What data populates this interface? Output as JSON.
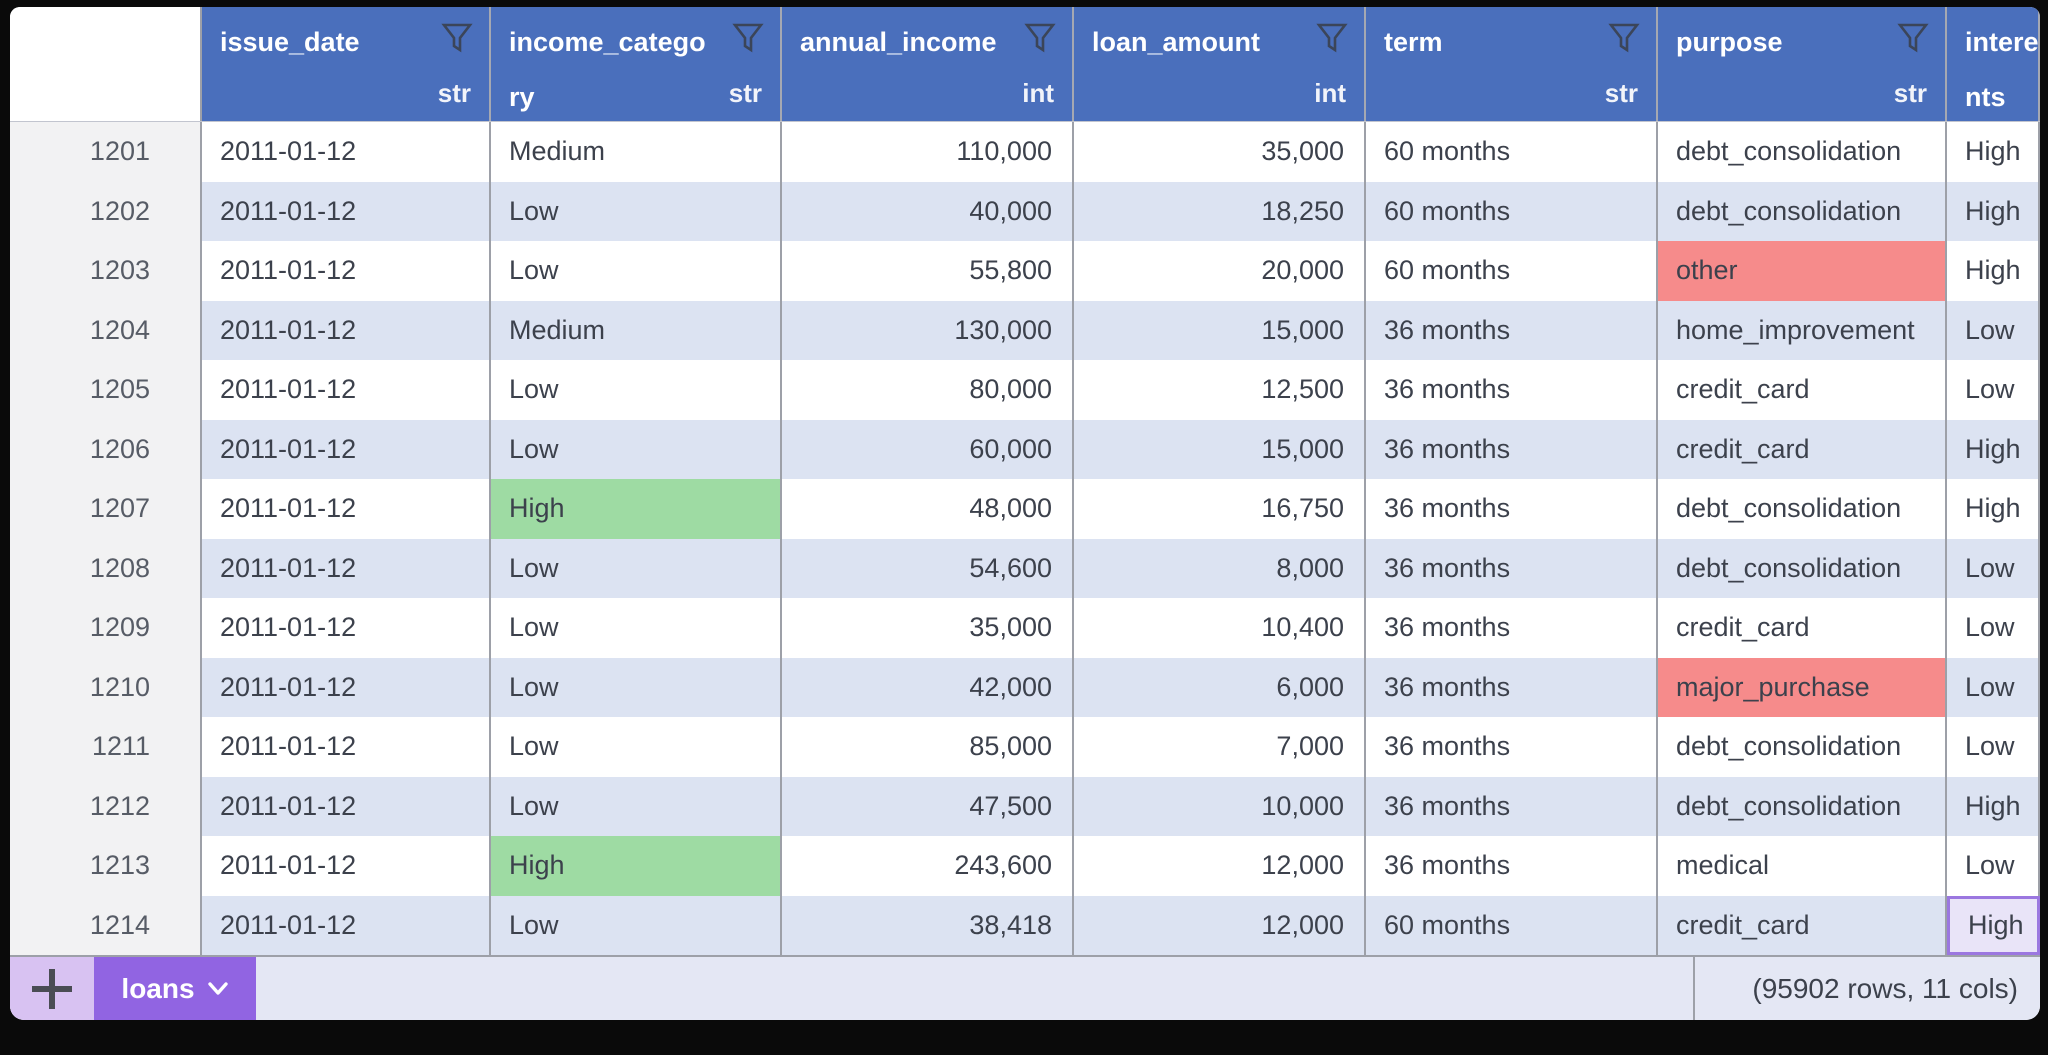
{
  "colors": {
    "header_blue": "#4a6fbc",
    "row_stripe": "#dce3f2",
    "highlight_green": "#9edba3",
    "highlight_red": "#f68b8b",
    "selection_purple": "#9b77e0",
    "tab_purple": "#9164e2",
    "add_button_purple": "#d8c2f2"
  },
  "table": {
    "columns": [
      {
        "id": "row-number",
        "label": "",
        "type": "",
        "filter": false,
        "align": "right"
      },
      {
        "id": "issue_date",
        "label": "issue_date",
        "type": "str",
        "filter": true,
        "align": "left"
      },
      {
        "id": "income_category",
        "label": "income_category",
        "label_lines": [
          "income_catego",
          "ry"
        ],
        "type": "str",
        "filter": true,
        "align": "left"
      },
      {
        "id": "annual_income",
        "label": "annual_income",
        "type": "int",
        "filter": true,
        "align": "right"
      },
      {
        "id": "loan_amount",
        "label": "loan_amount",
        "type": "int",
        "filter": true,
        "align": "right"
      },
      {
        "id": "term",
        "label": "term",
        "type": "str",
        "filter": true,
        "align": "left"
      },
      {
        "id": "purpose",
        "label": "purpose",
        "type": "str",
        "filter": true,
        "align": "left"
      },
      {
        "id": "interests",
        "label_lines": [
          "intere",
          "nts"
        ],
        "type": "",
        "filter": false,
        "align": "left"
      }
    ],
    "rows": [
      {
        "num": "1201",
        "cells": [
          {
            "t": "2011-01-12"
          },
          {
            "t": "Medium"
          },
          {
            "t": "110,000"
          },
          {
            "t": "35,000"
          },
          {
            "t": "60 months"
          },
          {
            "t": "debt_consolidation"
          },
          {
            "t": "High"
          }
        ]
      },
      {
        "num": "1202",
        "cells": [
          {
            "t": "2011-01-12"
          },
          {
            "t": "Low"
          },
          {
            "t": "40,000"
          },
          {
            "t": "18,250"
          },
          {
            "t": "60 months"
          },
          {
            "t": "debt_consolidation"
          },
          {
            "t": "High"
          }
        ]
      },
      {
        "num": "1203",
        "cells": [
          {
            "t": "2011-01-12"
          },
          {
            "t": "Low"
          },
          {
            "t": "55,800"
          },
          {
            "t": "20,000"
          },
          {
            "t": "60 months"
          },
          {
            "t": "other",
            "hl": "red"
          },
          {
            "t": "High"
          }
        ]
      },
      {
        "num": "1204",
        "cells": [
          {
            "t": "2011-01-12"
          },
          {
            "t": "Medium"
          },
          {
            "t": "130,000"
          },
          {
            "t": "15,000"
          },
          {
            "t": "36 months"
          },
          {
            "t": "home_improvement"
          },
          {
            "t": "Low"
          }
        ]
      },
      {
        "num": "1205",
        "cells": [
          {
            "t": "2011-01-12"
          },
          {
            "t": "Low"
          },
          {
            "t": "80,000"
          },
          {
            "t": "12,500"
          },
          {
            "t": "36 months"
          },
          {
            "t": "credit_card"
          },
          {
            "t": "Low"
          }
        ]
      },
      {
        "num": "1206",
        "cells": [
          {
            "t": "2011-01-12"
          },
          {
            "t": "Low"
          },
          {
            "t": "60,000"
          },
          {
            "t": "15,000"
          },
          {
            "t": "36 months"
          },
          {
            "t": "credit_card"
          },
          {
            "t": "High"
          }
        ]
      },
      {
        "num": "1207",
        "cells": [
          {
            "t": "2011-01-12"
          },
          {
            "t": "High",
            "hl": "green"
          },
          {
            "t": "48,000"
          },
          {
            "t": "16,750"
          },
          {
            "t": "36 months"
          },
          {
            "t": "debt_consolidation"
          },
          {
            "t": "High"
          }
        ]
      },
      {
        "num": "1208",
        "cells": [
          {
            "t": "2011-01-12"
          },
          {
            "t": "Low"
          },
          {
            "t": "54,600"
          },
          {
            "t": "8,000"
          },
          {
            "t": "36 months"
          },
          {
            "t": "debt_consolidation"
          },
          {
            "t": "Low"
          }
        ]
      },
      {
        "num": "1209",
        "cells": [
          {
            "t": "2011-01-12"
          },
          {
            "t": "Low"
          },
          {
            "t": "35,000"
          },
          {
            "t": "10,400"
          },
          {
            "t": "36 months"
          },
          {
            "t": "credit_card"
          },
          {
            "t": "Low"
          }
        ]
      },
      {
        "num": "1210",
        "cells": [
          {
            "t": "2011-01-12"
          },
          {
            "t": "Low"
          },
          {
            "t": "42,000"
          },
          {
            "t": "6,000"
          },
          {
            "t": "36 months"
          },
          {
            "t": "major_purchase",
            "hl": "red"
          },
          {
            "t": "Low"
          }
        ]
      },
      {
        "num": "1211",
        "cells": [
          {
            "t": "2011-01-12"
          },
          {
            "t": "Low"
          },
          {
            "t": "85,000"
          },
          {
            "t": "7,000"
          },
          {
            "t": "36 months"
          },
          {
            "t": "debt_consolidation"
          },
          {
            "t": "Low"
          }
        ]
      },
      {
        "num": "1212",
        "cells": [
          {
            "t": "2011-01-12"
          },
          {
            "t": "Low"
          },
          {
            "t": "47,500"
          },
          {
            "t": "10,000"
          },
          {
            "t": "36 months"
          },
          {
            "t": "debt_consolidation"
          },
          {
            "t": "High"
          }
        ]
      },
      {
        "num": "1213",
        "cells": [
          {
            "t": "2011-01-12"
          },
          {
            "t": "High",
            "hl": "green"
          },
          {
            "t": "243,600"
          },
          {
            "t": "12,000"
          },
          {
            "t": "36 months"
          },
          {
            "t": "medical"
          },
          {
            "t": "Low"
          }
        ]
      },
      {
        "num": "1214",
        "cells": [
          {
            "t": "2011-01-12"
          },
          {
            "t": "Low"
          },
          {
            "t": "38,418"
          },
          {
            "t": "12,000"
          },
          {
            "t": "60 months"
          },
          {
            "t": "credit_card"
          },
          {
            "t": "High",
            "sel": true
          }
        ]
      }
    ]
  },
  "footer": {
    "tab_label": "loans",
    "status": "(95902 rows, 11 cols)"
  },
  "icons": {
    "filter": "funnel-icon",
    "tab_menu": "chevron-down-icon",
    "add": "plus-icon"
  }
}
